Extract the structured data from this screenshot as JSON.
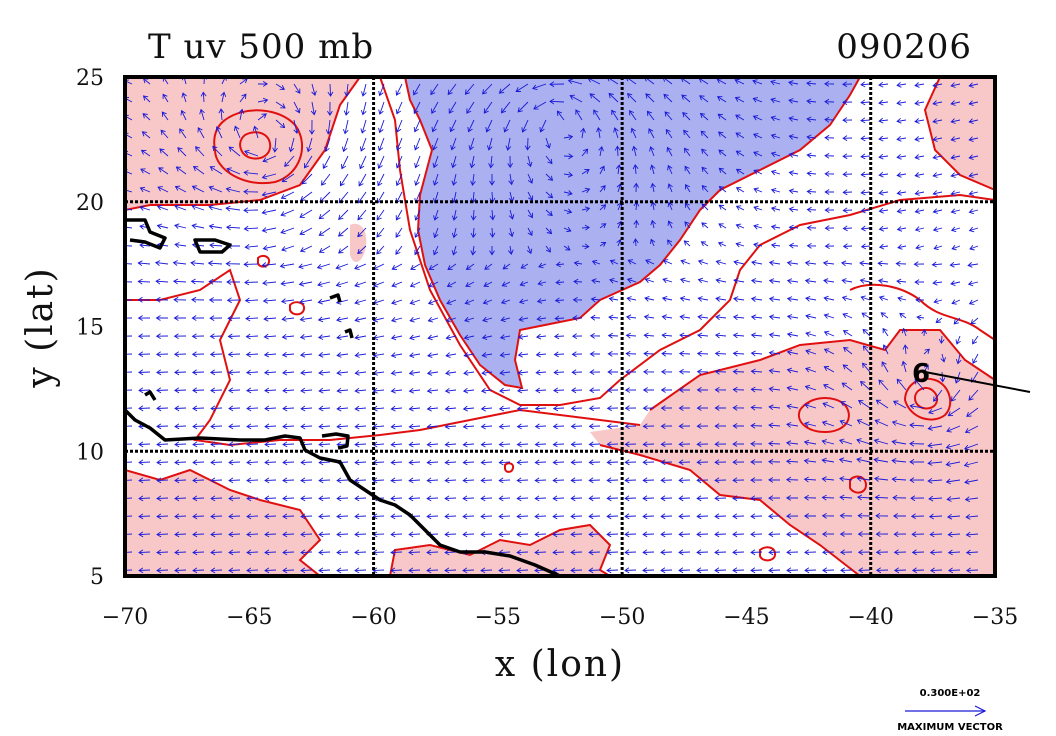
{
  "chart_data": {
    "type": "map",
    "title": "T uv 500 mb",
    "date_label": "090206",
    "xlabel": "x (lon)",
    "ylabel": "y (lat)",
    "xlim": [
      -70,
      -35
    ],
    "ylim": [
      5,
      25
    ],
    "x_ticks": [
      -70,
      -65,
      -60,
      -55,
      -50,
      -45,
      -40,
      -35
    ],
    "y_ticks": [
      5,
      10,
      15,
      20,
      25
    ],
    "grid_lon": [
      -60,
      -50,
      -40
    ],
    "grid_lat": [
      10,
      20
    ],
    "colors": {
      "warm_fill": "#f8c8c8",
      "cold_fill": "#aab0f0",
      "contour": "#e01010",
      "vector": "#1a1ad8",
      "coast": "#000000",
      "grid": "#000000"
    },
    "legend": {
      "value": "0.300E+02",
      "label": "MAXIMUM VECTOR"
    },
    "storm_marker": {
      "lon": -38.2,
      "lat": 13.2
    }
  }
}
